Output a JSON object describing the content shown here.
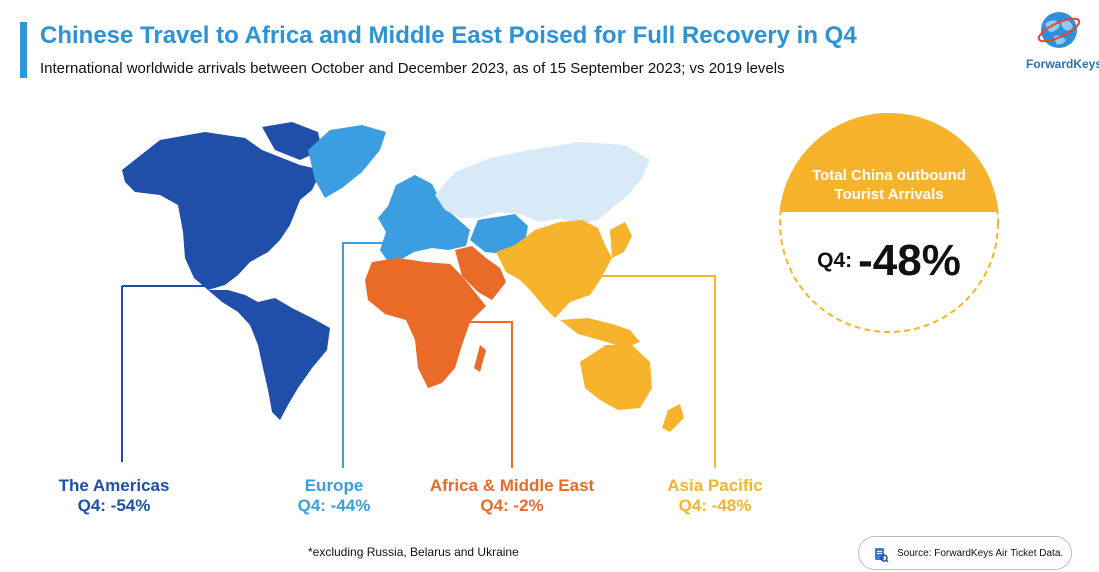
{
  "header": {
    "title": "Chinese Travel to Africa and Middle East Poised for Full Recovery in Q4",
    "subtitle": "International worldwide arrivals between October and December 2023, as of 15 September 2023; vs 2019 levels"
  },
  "logo": {
    "text": "ForwardKeys"
  },
  "kpi": {
    "label_line1": "Total China outbound",
    "label_line2": "Tourist Arrivals",
    "prefix": "Q4:",
    "value": "-48%"
  },
  "regions": [
    {
      "name": "The Americas",
      "value": "Q4: -54%",
      "color": "#1f4fa8"
    },
    {
      "name": "Europe",
      "value": "Q4: -44%",
      "color": "#3a9ee0"
    },
    {
      "name": "Africa & Middle East",
      "value": "Q4: -2%",
      "color": "#ea6a27"
    },
    {
      "name": "Asia Pacific",
      "value": "Q4: -48%",
      "color": "#f7b32b"
    }
  ],
  "excluded_region_color": "#d8e9f8",
  "footnote": "*excluding Russia, Belarus and Ukraine",
  "source": "Source: ForwardKeys Air Ticket Data."
}
